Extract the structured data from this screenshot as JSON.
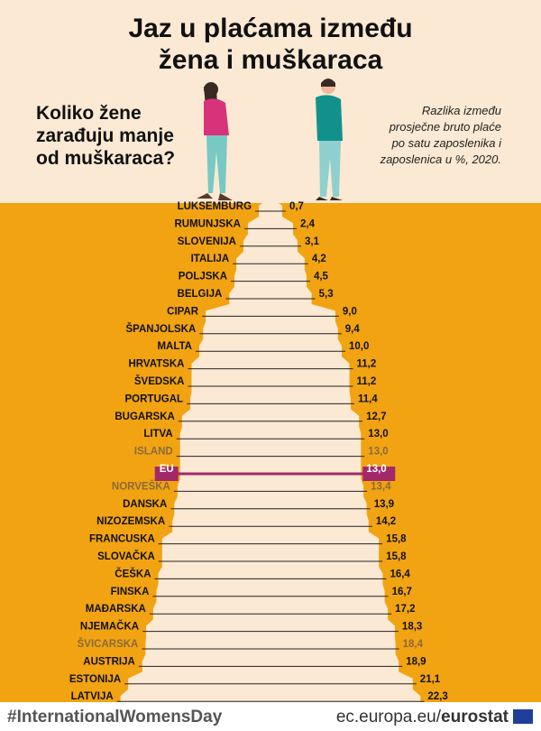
{
  "title_line1": "Jaz u plaćama između",
  "title_line2": "žena i muškaraca",
  "question_line1": "Koliko žene",
  "question_line2": "zarađuju manje",
  "question_line3": "od muškaraca?",
  "subtitle_line1": "Razlika između",
  "subtitle_line2": "prosječne bruto plaće",
  "subtitle_line3": "po satu zaposlenika i",
  "subtitle_line4": "zaposlenica u %, 2020.",
  "footer_hashtag": "#InternationalWomensDay",
  "footer_source_plain": "ec.europa.eu/",
  "footer_source_bold": "eurostat",
  "colors": {
    "background_top": "#fbe9d3",
    "background_chart": "#f2a311",
    "peak": "#fbe9d3",
    "highlight_eu": "#a3286a",
    "non_eu_text": "#8a6a3a",
    "eu_text": "#111111",
    "line": "#222222"
  },
  "chart_data": {
    "type": "bar",
    "title": "Jaz u plaćama između žena i muškaraca",
    "subtitle": "Razlika između prosječne bruto plaće po satu zaposlenika i zaposlenica u %, 2020.",
    "categories": [
      "LUKSEMBURG",
      "RUMUNJSKA",
      "SLOVENIJA",
      "ITALIJA",
      "POLJSKA",
      "BELGIJA",
      "CIPAR",
      "ŠPANJOLSKA",
      "MALTA",
      "HRVATSKA",
      "ŠVEDSKA",
      "PORTUGAL",
      "BUGARSKA",
      "LITVA",
      "ISLAND",
      "EU",
      "NORVEŠKA",
      "DANSKA",
      "NIZOZEMSKA",
      "FRANCUSKA",
      "SLOVAČKA",
      "ČEŠKA",
      "FINSKA",
      "MAĐARSKA",
      "NJEMAČKA",
      "ŠVICARSKA",
      "AUSTRIJA",
      "ESTONIJA",
      "LATVIJA"
    ],
    "values": [
      0.7,
      2.4,
      3.1,
      4.2,
      4.5,
      5.3,
      9.0,
      9.4,
      10.0,
      11.2,
      11.2,
      11.4,
      12.7,
      13.0,
      13.0,
      13.0,
      13.4,
      13.9,
      14.2,
      15.8,
      15.8,
      16.4,
      16.7,
      17.2,
      18.3,
      18.4,
      18.9,
      21.1,
      22.3
    ],
    "value_labels": [
      "0,7",
      "2,4",
      "3,1",
      "4,2",
      "4,5",
      "5,3",
      "9,0",
      "9,4",
      "10,0",
      "11,2",
      "11,2",
      "11,4",
      "12,7",
      "13,0",
      "13,0",
      "13,0",
      "13,4",
      "13,9",
      "14,2",
      "15,8",
      "15,8",
      "16,4",
      "16,7",
      "17,2",
      "18,3",
      "18,4",
      "18,9",
      "21,1",
      "22,3"
    ],
    "group": [
      "eu",
      "eu",
      "eu",
      "eu",
      "eu",
      "eu",
      "eu",
      "eu",
      "eu",
      "eu",
      "eu",
      "eu",
      "eu",
      "eu",
      "non-eu",
      "aggregate",
      "non-eu",
      "eu",
      "eu",
      "eu",
      "eu",
      "eu",
      "eu",
      "eu",
      "eu",
      "non-eu",
      "eu",
      "eu",
      "eu"
    ],
    "xlim": [
      0,
      22.3
    ],
    "orientation": "horizontal, mirrored around center (tapered peak)",
    "grid": false,
    "legend": "none"
  }
}
